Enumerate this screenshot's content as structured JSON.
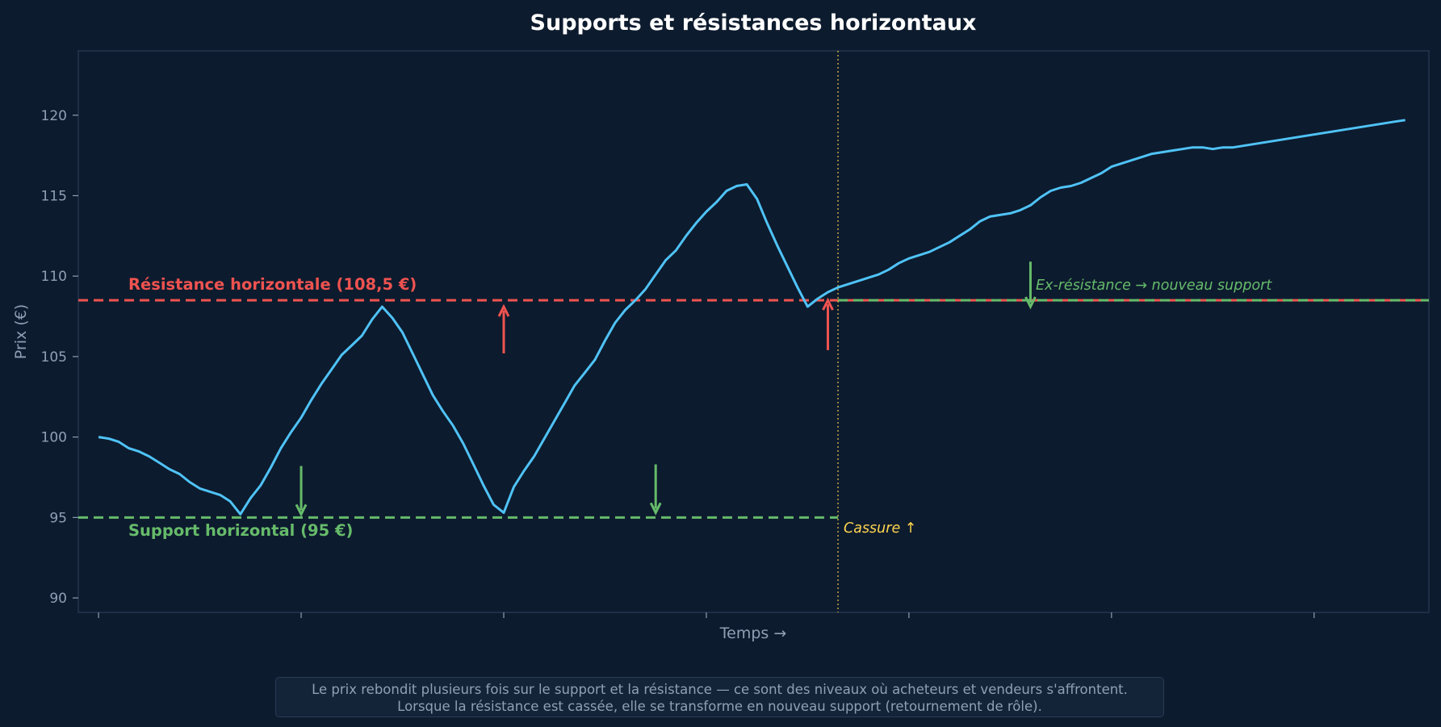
{
  "colors": {
    "background": "#0d1b2e",
    "plot_bg": "#0d1b2e",
    "frame": "#2a3b55",
    "price_line": "#4fc3f7",
    "resistance": "#ef5350",
    "support": "#66bb6a",
    "breakout": "#ffd54f",
    "text_muted": "#8fa0b4",
    "title": "#ffffff"
  },
  "chart_data": {
    "type": "line",
    "title": "Supports et résistances horizontaux",
    "xlabel": "Temps →",
    "ylabel": "Prix (€)",
    "ylim": [
      89.1,
      124
    ],
    "yticks": [
      90,
      95,
      100,
      105,
      110,
      115,
      120
    ],
    "xlim": [
      -3,
      197
    ],
    "xticks": [
      0,
      30,
      60,
      90,
      120,
      150,
      180
    ],
    "grid": false,
    "series": [
      {
        "x": [
          0,
          1.5,
          3,
          4.5,
          6,
          7.5,
          9,
          10.5,
          12,
          13.5,
          15,
          16.5,
          18,
          19.5,
          21,
          22.5,
          24,
          25.5,
          27,
          28.5,
          30,
          31.5,
          33,
          34.5,
          36,
          37.5,
          39,
          40.5,
          42,
          43.5,
          45,
          46.5,
          48,
          49.5,
          51,
          52.5,
          54,
          55.5,
          57,
          58.5,
          60,
          61.5,
          63,
          64.5,
          66,
          67.5,
          69,
          70.5,
          72,
          73.5,
          75,
          76.5,
          78,
          79.5,
          81,
          82.5,
          84,
          85.5,
          87,
          88.5,
          90,
          91.5,
          93,
          94.5,
          96,
          97.5,
          99,
          100.5,
          102,
          103.5,
          105,
          106.5,
          108,
          109.5,
          111,
          112.5,
          114,
          115.5,
          117,
          118.5,
          120,
          121.5,
          123,
          124.5,
          126,
          127.5,
          129,
          130.5,
          132,
          133.5,
          135,
          136.5,
          138,
          139.5,
          141,
          142.5,
          144,
          145.5,
          147,
          148.5,
          150,
          151.5,
          153,
          154.5,
          156,
          157.5,
          159,
          160.5,
          162,
          163.5,
          165,
          166.5,
          168,
          169.5,
          171,
          172.5,
          174,
          175.5,
          177,
          178.5,
          180,
          181.5,
          183,
          184.5,
          186,
          187.5,
          189,
          190.5,
          192,
          193.5
        ],
        "values": [
          100,
          99.9,
          99.7,
          99.3,
          99.1,
          98.8,
          98.4,
          98.0,
          97.7,
          97.2,
          96.8,
          96.6,
          96.4,
          96.0,
          95.2,
          96.2,
          97.0,
          98.1,
          99.3,
          100.3,
          101.2,
          102.3,
          103.3,
          104.2,
          105.1,
          105.7,
          106.3,
          107.3,
          108.1,
          107.4,
          106.5,
          105.2,
          103.9,
          102.6,
          101.6,
          100.7,
          99.6,
          98.3,
          97.0,
          95.8,
          95.3,
          96.9,
          97.9,
          98.8,
          99.9,
          101.0,
          102.1,
          103.2,
          104.0,
          104.8,
          106.0,
          107.1,
          107.9,
          108.5,
          109.2,
          110.1,
          111.0,
          111.6,
          112.5,
          113.3,
          114.0,
          114.6,
          115.3,
          115.6,
          115.7,
          114.8,
          113.3,
          111.9,
          110.6,
          109.3,
          108.1,
          108.6,
          109.0,
          109.3,
          109.5,
          109.7,
          109.9,
          110.1,
          110.4,
          110.8,
          111.1,
          111.3,
          111.5,
          111.8,
          112.1,
          112.5,
          112.9,
          113.4,
          113.7,
          113.8,
          113.9,
          114.1,
          114.4,
          114.9,
          115.3,
          115.5,
          115.6,
          115.8,
          116.1,
          116.4,
          116.8,
          117.0,
          117.2,
          117.4,
          117.6,
          117.7,
          117.8,
          117.9,
          118.0,
          118.0,
          117.9,
          118.0,
          118.0,
          118.1,
          118.2,
          118.3,
          118.4,
          118.5,
          118.6,
          118.7,
          118.8,
          118.9,
          119.0,
          119.1,
          119.2,
          119.3,
          119.4,
          119.5,
          119.6,
          119.7
        ]
      }
    ],
    "resistance": {
      "label": "Résistance horizontale (108,5 €)",
      "value": 108.5
    },
    "support": {
      "label": "Support horizontal (95 €)",
      "value": 95
    },
    "breakout": {
      "label": "Cassure ↑",
      "x": 109.5
    },
    "role_reversal": {
      "label": "Ex-résistance → nouveau support",
      "value": 108.5
    },
    "arrows": [
      {
        "kind": "support",
        "x": 30,
        "from": 98.2,
        "to": 95.2
      },
      {
        "kind": "resistance",
        "x": 60,
        "from": 105.2,
        "to": 108.1
      },
      {
        "kind": "support",
        "x": 82.5,
        "from": 98.3,
        "to": 95.3
      },
      {
        "kind": "resistance",
        "x": 108,
        "from": 105.4,
        "to": 108.5
      },
      {
        "kind": "support",
        "x": 138,
        "from": 110.9,
        "to": 108.1
      }
    ]
  },
  "caption": {
    "line1": "Le prix rebondit plusieurs fois sur le support et la résistance — ce sont des niveaux où acheteurs et vendeurs s'affrontent.",
    "line2": "Lorsque la résistance est cassée, elle se transforme en nouveau support (retournement de rôle)."
  }
}
